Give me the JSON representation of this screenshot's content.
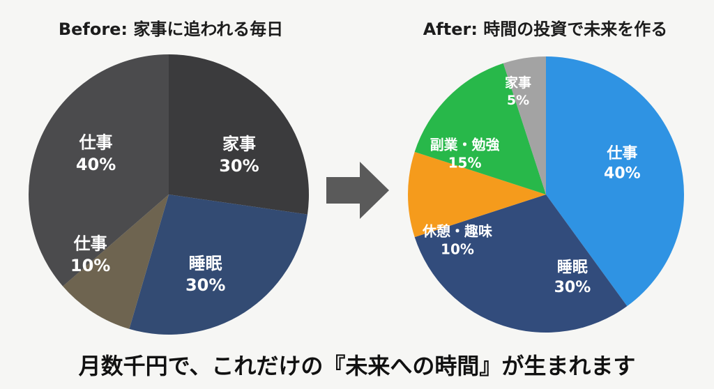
{
  "chart_data": [
    {
      "type": "pie",
      "title": "Before: 家事に追われる毎日",
      "slices": [
        {
          "label": "家事",
          "value": 30,
          "value_label": "30%",
          "color": "#3b3b3d"
        },
        {
          "label": "睡眠",
          "value": 30,
          "value_label": "30%",
          "color": "#334b73"
        },
        {
          "label": "仕事",
          "value": 10,
          "value_label": "10%",
          "color": "#6e6450"
        },
        {
          "label": "仕事",
          "value": 40,
          "value_label": "40%",
          "color": "#4b4b4d"
        }
      ]
    },
    {
      "type": "pie",
      "title": "After: 時間の投資で未来を作る",
      "slices": [
        {
          "label": "仕事",
          "value": 40,
          "value_label": "40%",
          "color": "#2f93e3"
        },
        {
          "label": "睡眠",
          "value": 30,
          "value_label": "30%",
          "color": "#324c7c"
        },
        {
          "label": "休憩・趣味",
          "value": 10,
          "value_label": "10%",
          "color": "#f59b1c"
        },
        {
          "label": "副業・勉強",
          "value": 15,
          "value_label": "15%",
          "color": "#28b84a"
        },
        {
          "label": "家事",
          "value": 5,
          "value_label": "5%",
          "color": "#a3a3a3"
        }
      ]
    }
  ],
  "footer": {
    "text": "月数千円で、これだけの『未来への時間』が生まれます"
  },
  "arrow": {
    "icon": "right-arrow-icon",
    "color": "#5a5a5a"
  }
}
